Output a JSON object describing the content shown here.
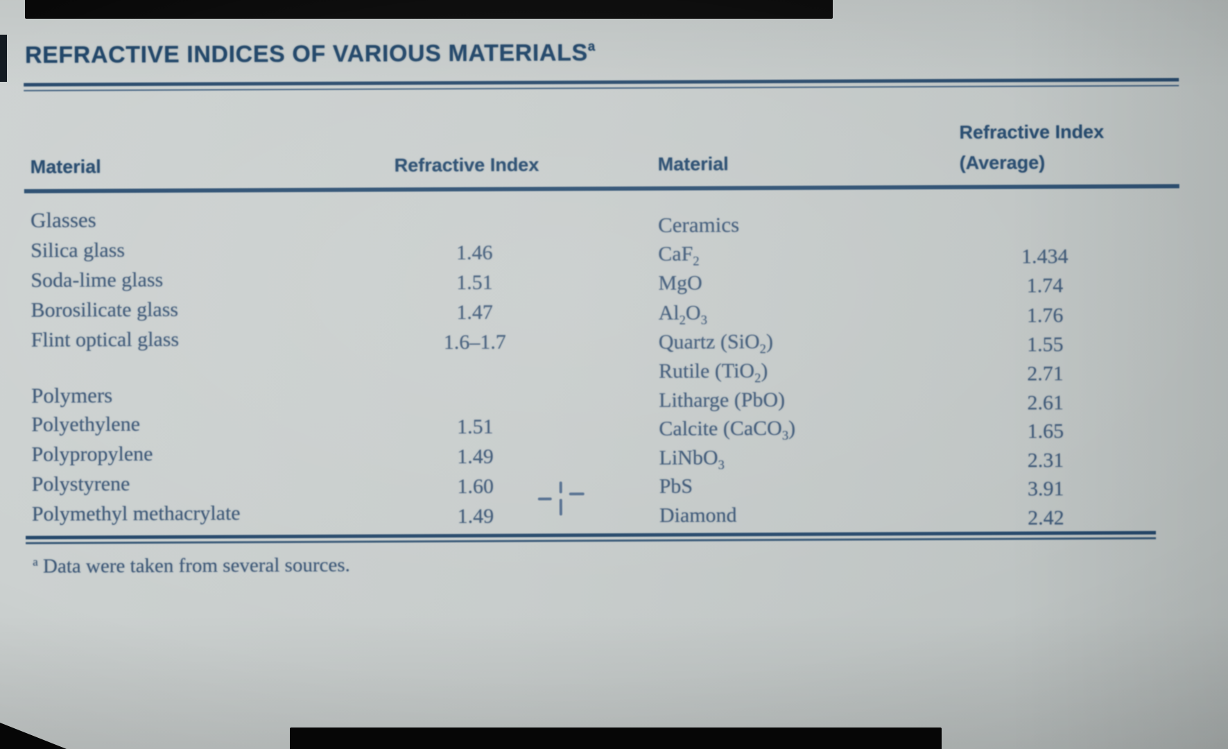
{
  "page": {
    "title": "REFRACTIVE INDICES OF VARIOUS MATERIALS",
    "title_footnote_marker": "a",
    "footnote_marker": "a",
    "footnote_text": "Data were taken from several sources.",
    "ink_color": "#2a4d70",
    "paper_color": "#c7cccb",
    "photo_edge_color": "#070707"
  },
  "table": {
    "headers": {
      "material_left": "Material",
      "index_left": "Refractive Index",
      "material_right": "Material",
      "index_right_line1": "Refractive Index",
      "index_right_line2": "(Average)"
    },
    "left_rows": [
      {
        "label": "Glasses",
        "value": "",
        "category": true
      },
      {
        "label": "Silica glass",
        "value": "1.46"
      },
      {
        "label": "Soda-lime glass",
        "value": "1.51"
      },
      {
        "label": "Borosilicate glass",
        "value": "1.47"
      },
      {
        "label": "Flint optical glass",
        "value": "1.6–1.7"
      },
      {
        "label": "Polymers",
        "value": "",
        "category": true
      },
      {
        "label": "Polyethylene",
        "value": "1.51"
      },
      {
        "label": "Polypropylene",
        "value": "1.49"
      },
      {
        "label": "Polystyrene",
        "value": "1.60"
      },
      {
        "label": "Polymethyl methacrylate",
        "value": "1.49"
      }
    ],
    "right_rows": [
      {
        "label": "Ceramics",
        "value": "",
        "category": true
      },
      {
        "label": "CaF_2",
        "value": "1.434"
      },
      {
        "label": "MgO",
        "value": "1.74"
      },
      {
        "label": "Al_2O_3",
        "value": "1.76"
      },
      {
        "label": "Quartz (SiO_2)",
        "value": "1.55"
      },
      {
        "label": "Rutile (TiO_2)",
        "value": "2.71"
      },
      {
        "label": "Litharge (PbO)",
        "value": "2.61"
      },
      {
        "label": "Calcite (CaCO_3)",
        "value": "1.65"
      },
      {
        "label": "LiNbO_3",
        "value": "2.31"
      },
      {
        "label": "PbS",
        "value": "3.91"
      },
      {
        "label": "Diamond",
        "value": "2.42"
      }
    ]
  },
  "annotations": {
    "pencil_cross_mark": "dashed plus mark drawn beside the Polystyrene / Polymethyl methacrylate values"
  }
}
